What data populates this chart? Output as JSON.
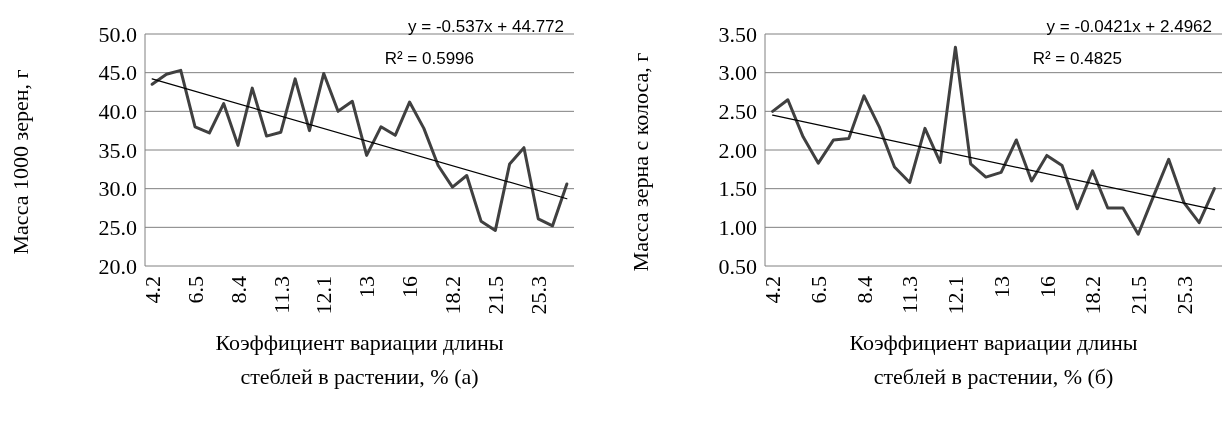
{
  "chart_data": [
    {
      "type": "line",
      "ylabel": "Масса 1000 зерен, г",
      "xlabel": "Коэффициент вариации длины\nстеблей в растении, % (а)",
      "categories": [
        "4.2",
        null,
        null,
        "6.5",
        null,
        null,
        "8.4",
        null,
        null,
        "11.3",
        null,
        null,
        "12.1",
        null,
        null,
        "13",
        null,
        null,
        "16",
        null,
        null,
        "18.2",
        null,
        null,
        "21.5",
        null,
        null,
        "25.3",
        null,
        null
      ],
      "series": [
        {
          "color": "#404040",
          "values": [
            43.5,
            44.8,
            45.3,
            38.0,
            37.2,
            41.0,
            35.6,
            43.0,
            36.8,
            37.3,
            44.2,
            37.5,
            44.9,
            40.0,
            41.3,
            34.3,
            38.0,
            36.9,
            41.2,
            37.8,
            33.0,
            30.2,
            31.7,
            25.8,
            24.6,
            33.2,
            35.3,
            26.1,
            25.2,
            30.6
          ]
        },
        {
          "type": "line",
          "color": "#000000",
          "values": [
            44.2,
            null,
            null,
            null,
            null,
            null,
            null,
            null,
            null,
            null,
            null,
            null,
            null,
            null,
            null,
            null,
            null,
            null,
            null,
            null,
            null,
            null,
            null,
            null,
            null,
            null,
            null,
            null,
            null,
            28.7
          ]
        }
      ],
      "ylim": [
        20,
        50
      ],
      "yticks": [
        {
          "value": 20,
          "label": "20.0"
        },
        {
          "value": 25,
          "label": "25.0"
        },
        {
          "value": 30,
          "label": "30.0"
        },
        {
          "value": 35,
          "label": "35.0"
        },
        {
          "value": 40,
          "label": "40.0"
        },
        {
          "value": 45,
          "label": "45.0"
        },
        {
          "value": 50,
          "label": "50.0"
        }
      ],
      "grid": "y",
      "annotations": [
        "y = -0.537x + 44.772",
        "R² = 0.5996"
      ]
    },
    {
      "type": "line",
      "ylabel": "Масса зерна с колоса, г",
      "xlabel": "Коэффициент вариации длины\nстеблей в растении, % (б)",
      "categories": [
        "4.2",
        null,
        null,
        "6.5",
        null,
        null,
        "8.4",
        null,
        null,
        "11.3",
        null,
        null,
        "12.1",
        null,
        null,
        "13",
        null,
        null,
        "16",
        null,
        null,
        "18.2",
        null,
        null,
        "21.5",
        null,
        null,
        "25.3",
        null,
        null
      ],
      "series": [
        {
          "color": "#404040",
          "values": [
            2.5,
            2.65,
            2.17,
            1.83,
            2.13,
            2.15,
            2.7,
            2.3,
            1.78,
            1.58,
            2.28,
            1.84,
            3.33,
            1.82,
            1.65,
            1.71,
            2.13,
            1.6,
            1.93,
            1.8,
            1.24,
            1.73,
            1.25,
            1.25,
            0.91,
            1.4,
            1.88,
            1.32,
            1.06,
            1.5
          ]
        },
        {
          "type": "line",
          "color": "#000000",
          "values": [
            2.45,
            null,
            null,
            null,
            null,
            null,
            null,
            null,
            null,
            null,
            null,
            null,
            null,
            null,
            null,
            null,
            null,
            null,
            null,
            null,
            null,
            null,
            null,
            null,
            null,
            null,
            null,
            null,
            null,
            1.23
          ]
        }
      ],
      "ylim": [
        0.5,
        3.5
      ],
      "yticks": [
        {
          "value": 0.5,
          "label": "0.50"
        },
        {
          "value": 1,
          "label": "1.00"
        },
        {
          "value": 1.5,
          "label": "1.50"
        },
        {
          "value": 2,
          "label": "2.00"
        },
        {
          "value": 2.5,
          "label": "2.50"
        },
        {
          "value": 3,
          "label": "3.00"
        },
        {
          "value": 3.5,
          "label": "3.50"
        }
      ],
      "grid": "y",
      "annotations": [
        "y = -0.0421x + 2.4962",
        "R² = 0.4825"
      ]
    }
  ]
}
